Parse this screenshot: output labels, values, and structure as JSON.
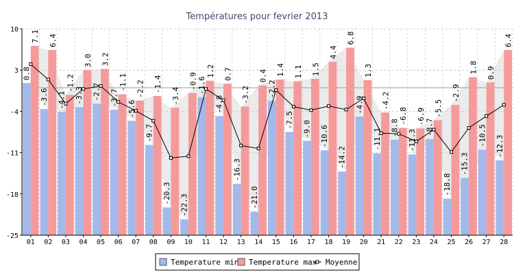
{
  "chart_data": {
    "type": "bar",
    "title": "Températures pour fevrier 2013",
    "xlabel": "",
    "ylabel": "",
    "ylim": [
      -25,
      10
    ],
    "yticks": [
      10,
      3,
      -4,
      -11,
      -18,
      -25
    ],
    "grid": true,
    "legend_position": "bottom-center",
    "categories": [
      "01",
      "02",
      "03",
      "04",
      "05",
      "06",
      "07",
      "08",
      "09",
      "10",
      "11",
      "12",
      "13",
      "14",
      "15",
      "16",
      "17",
      "18",
      "19",
      "20",
      "21",
      "22",
      "23",
      "24",
      "25",
      "26",
      "27",
      "28"
    ],
    "series": [
      {
        "name": "Temperature min",
        "kind": "bar",
        "color": "#a2b9ea",
        "values": [
          0.8,
          -3.6,
          -4.1,
          -3.3,
          -2.7,
          -3.7,
          -5.6,
          -9.7,
          -20.3,
          -22.3,
          -1.6,
          -4.8,
          -16.3,
          -21.0,
          -2.2,
          -7.5,
          -9.0,
          -10.6,
          -14.2,
          -4.9,
          -11.1,
          -8.8,
          -11.3,
          -8.7,
          -18.8,
          -15.3,
          -10.5,
          -12.3
        ]
      },
      {
        "name": "Temperature max",
        "kind": "bar",
        "color": "#f59a9a",
        "values": [
          7.1,
          6.4,
          -1.2,
          3.0,
          3.2,
          -1.1,
          -2.2,
          -1.4,
          -3.4,
          -0.9,
          1.2,
          0.7,
          -3.2,
          0.4,
          1.4,
          1.1,
          1.5,
          4.4,
          6.8,
          1.3,
          -4.2,
          -6.8,
          -6.9,
          -5.5,
          -2.9,
          1.8,
          0.9,
          6.4
        ]
      },
      {
        "name": "Moyenne",
        "kind": "line",
        "color": "#000000",
        "values": [
          4.0,
          1.4,
          -2.7,
          -0.2,
          0.3,
          -2.4,
          -3.9,
          -5.6,
          -11.9,
          -11.6,
          -0.2,
          -2.1,
          -9.8,
          -10.3,
          -0.4,
          -3.2,
          -3.8,
          -3.1,
          -3.7,
          -1.8,
          -7.7,
          -7.8,
          -9.1,
          -7.1,
          -10.9,
          -6.8,
          -4.8,
          -2.9
        ]
      }
    ]
  }
}
